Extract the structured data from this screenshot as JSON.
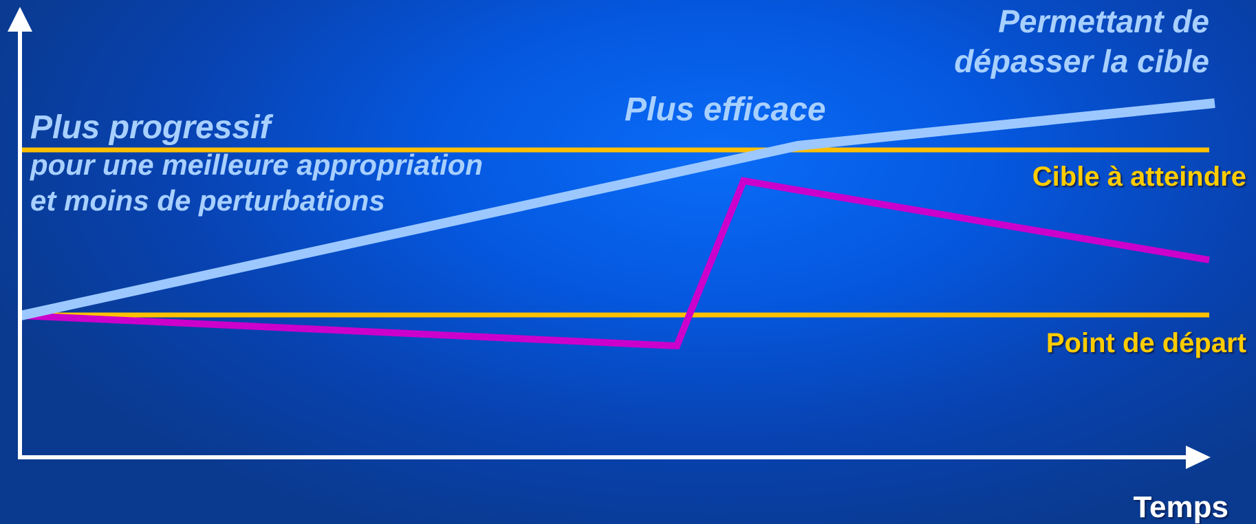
{
  "colors": {
    "reference_lines": "#ffc000",
    "progressive_line": "#9cc8ff",
    "abrupt_line": "#cc00cc",
    "axes": "#ffffff"
  },
  "labels": {
    "permettant_line1": "Permettant de",
    "permettant_line2": "dépasser la cible",
    "plus_efficace": "Plus efficace",
    "plus_progressif": "Plus progressif",
    "progressif_sub_line1": "pour une meilleure appropriation",
    "progressif_sub_line2": "et moins de perturbations",
    "cible": "Cible à atteindre",
    "depart": "Point de départ",
    "x_axis": "Temps"
  }
}
